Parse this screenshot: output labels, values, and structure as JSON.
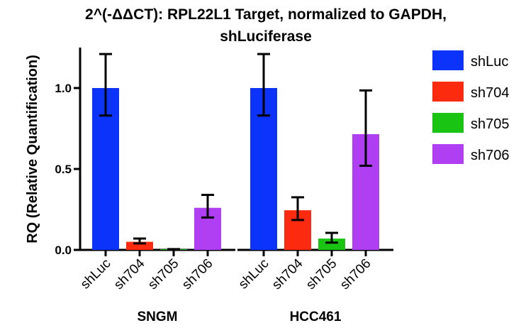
{
  "chart_data": {
    "type": "bar",
    "title": [
      "2^(-ΔΔCT): RPL22L1 Target, normalized to GAPDH,",
      "shLuciferase"
    ],
    "ylabel": "RQ (Relative Quantification)",
    "xlabel": "",
    "ylim": [
      0,
      1.25
    ],
    "yticks": [
      {
        "value": 0.0,
        "label": "0.0"
      },
      {
        "value": 0.5,
        "label": "0.5"
      },
      {
        "value": 1.0,
        "label": "1.0"
      }
    ],
    "series_names": [
      "shLuc",
      "sh704",
      "sh705",
      "sh706"
    ],
    "series_colors": [
      "#0c33f9",
      "#fc2a0e",
      "#1ac413",
      "#b03ef2"
    ],
    "groups": [
      {
        "name": "SNGM",
        "bars": [
          {
            "label": "shLuc",
            "value": 1.0,
            "err_low": 0.83,
            "err_high": 1.21
          },
          {
            "label": "sh704",
            "value": 0.05,
            "err_low": 0.04,
            "err_high": 0.07
          },
          {
            "label": "sh705",
            "value": 0.004,
            "err_low": 0.003,
            "err_high": 0.005
          },
          {
            "label": "sh706",
            "value": 0.26,
            "err_low": 0.2,
            "err_high": 0.34
          }
        ]
      },
      {
        "name": "HCC461",
        "bars": [
          {
            "label": "shLuc",
            "value": 1.0,
            "err_low": 0.83,
            "err_high": 1.21
          },
          {
            "label": "sh704",
            "value": 0.245,
            "err_low": 0.185,
            "err_high": 0.325
          },
          {
            "label": "sh705",
            "value": 0.07,
            "err_low": 0.045,
            "err_high": 0.105
          },
          {
            "label": "sh706",
            "value": 0.715,
            "err_low": 0.52,
            "err_high": 0.985
          }
        ]
      }
    ],
    "legend_position": "top-right",
    "grid": false
  }
}
